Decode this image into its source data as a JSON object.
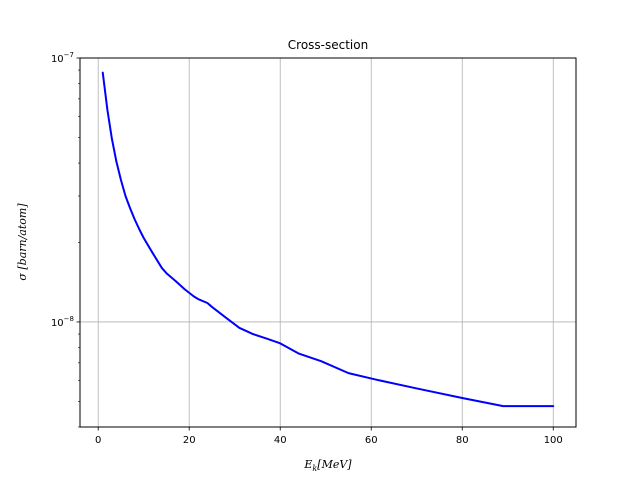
{
  "chart_data": {
    "type": "line",
    "title": "Cross-section",
    "xlabel_main": "E",
    "xlabel_sub": "k",
    "xlabel_unit": "[MeV]",
    "ylabel": "σ [barn/atom]",
    "xlim": [
      -4,
      105
    ],
    "ylim": [
      4e-09,
      1e-07
    ],
    "yscale": "log",
    "grid": true,
    "xticks": [
      {
        "value": 0,
        "label": "0"
      },
      {
        "value": 20,
        "label": "20"
      },
      {
        "value": 40,
        "label": "40"
      },
      {
        "value": 60,
        "label": "60"
      },
      {
        "value": 80,
        "label": "80"
      },
      {
        "value": 100,
        "label": "100"
      }
    ],
    "yticks": [
      {
        "value": 1e-08,
        "base": "10",
        "exp": "−8"
      },
      {
        "value": 1e-07,
        "base": "10",
        "exp": "−7"
      }
    ],
    "series": [
      {
        "color": "#0000ff",
        "x": [
          1,
          2,
          3,
          4,
          5,
          6,
          7,
          8,
          9,
          10,
          12,
          14,
          15,
          17,
          19,
          21,
          22,
          24,
          25,
          28,
          31,
          34,
          37,
          40,
          44,
          49,
          55,
          61,
          70,
          80,
          89,
          100
        ],
        "y": [
          8.8e-08,
          6.4e-08,
          4.95e-08,
          4.05e-08,
          3.45e-08,
          3e-08,
          2.7e-08,
          2.45e-08,
          2.25e-08,
          2.08e-08,
          1.82e-08,
          1.6e-08,
          1.53e-08,
          1.43e-08,
          1.33e-08,
          1.25e-08,
          1.22e-08,
          1.18e-08,
          1.14e-08,
          1.04e-08,
          9.5e-09,
          9e-09,
          8.65e-09,
          8.3e-09,
          7.6e-09,
          7.1e-09,
          6.4e-09,
          6.05e-09,
          5.6e-09,
          5.15e-09,
          4.8e-09,
          4.8e-09
        ]
      }
    ]
  }
}
